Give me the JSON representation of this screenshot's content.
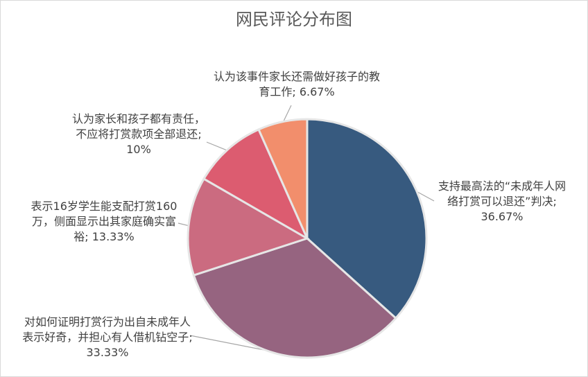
{
  "chart_data": {
    "type": "pie",
    "title": "网民评论分布图",
    "slices": [
      {
        "label": "支持最高法的“未成年人网络打赏可以退还”判决",
        "value": 36.67,
        "value_label": "36.67%",
        "color": "#375a7f"
      },
      {
        "label": "对如何证明打赏行为出自未成年人表示好奇，并担心有人借机钻空子",
        "value": 33.33,
        "value_label": "33.33%",
        "color": "#966480"
      },
      {
        "label": "表示16岁学生能支配打赏160万，侧面显示出其家庭确实富裕",
        "value": 13.33,
        "value_label": "13.33%",
        "color": "#cb6b80"
      },
      {
        "label": "认为家长和孩子都有责任，不应将打赏款项全部退还",
        "value": 10,
        "value_label": "10%",
        "color": "#dc5c70"
      },
      {
        "label": "认为该事件家长还需做好孩子的教育工作",
        "value": 6.67,
        "value_label": "6.67%",
        "color": "#f28e6c"
      }
    ],
    "start_angle_deg": 0,
    "direction": "clockwise",
    "legend": "none",
    "data_labels": "outside with leader lines"
  }
}
